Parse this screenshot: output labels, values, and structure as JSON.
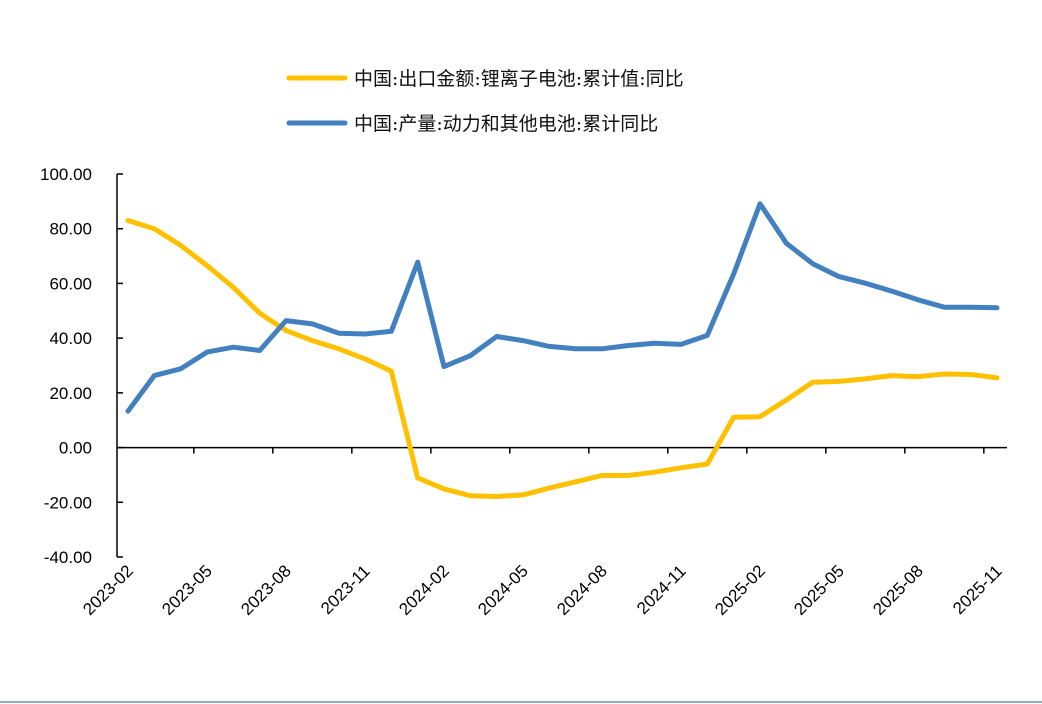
{
  "chart_data": {
    "type": "line",
    "title": "",
    "xlabel": "",
    "ylabel": "",
    "ylim": [
      -40,
      100
    ],
    "yticks": [
      "100.00",
      "80.00",
      "60.00",
      "40.00",
      "20.00",
      "0.00",
      "-20.00",
      "-40.00"
    ],
    "ytick_values": [
      100,
      80,
      60,
      40,
      20,
      0,
      -20,
      -40
    ],
    "grid": false,
    "legend_position": "top",
    "x": [
      "2023-02",
      "2023-03",
      "2023-04",
      "2023-05",
      "2023-06",
      "2023-07",
      "2023-08",
      "2023-09",
      "2023-10",
      "2023-11",
      "2023-12",
      "2024-01",
      "2024-02",
      "2024-03",
      "2024-04",
      "2024-05",
      "2024-06",
      "2024-07",
      "2024-08",
      "2024-09",
      "2024-10",
      "2024-11",
      "2024-12",
      "2025-01",
      "2025-02",
      "2025-03",
      "2025-04",
      "2025-05",
      "2025-06",
      "2025-07",
      "2025-08",
      "2025-09",
      "2025-10",
      "2025-11"
    ],
    "xtick_labels": [
      "2023-02",
      "2023-05",
      "2023-08",
      "2023-11",
      "2024-02",
      "2024-05",
      "2024-08",
      "2024-11",
      "2025-02",
      "2025-05",
      "2025-08",
      "2025-11"
    ],
    "series": [
      {
        "name": "中国:出口金额:锂离子电池:累计值:同比",
        "color": "#FFC000",
        "values": [
          83.0,
          80.0,
          73.9,
          66.5,
          58.6,
          49.1,
          42.8,
          39.1,
          36.1,
          32.4,
          27.9,
          -11.1,
          -15.1,
          -17.6,
          -17.9,
          -17.3,
          -14.8,
          -12.5,
          -10.2,
          -10.2,
          -9.0,
          -7.4,
          -6.0,
          11.1,
          11.3,
          17.4,
          23.9,
          24.2,
          25.1,
          26.3,
          25.9,
          26.9,
          26.7,
          25.5
        ]
      },
      {
        "name": "中国:产量:动力和其他电池:累计同比",
        "color": "#4280BF",
        "values": [
          13.3,
          26.3,
          28.8,
          34.9,
          36.7,
          35.5,
          46.4,
          45.2,
          41.8,
          41.5,
          42.5,
          67.8,
          29.6,
          33.6,
          40.6,
          39.1,
          37.0,
          36.1,
          36.1,
          37.3,
          38.1,
          37.7,
          41.0,
          63.5,
          89.1,
          74.7,
          67.2,
          62.5,
          60.1,
          57.2,
          54.0,
          51.3,
          51.3,
          51.1
        ]
      }
    ]
  }
}
